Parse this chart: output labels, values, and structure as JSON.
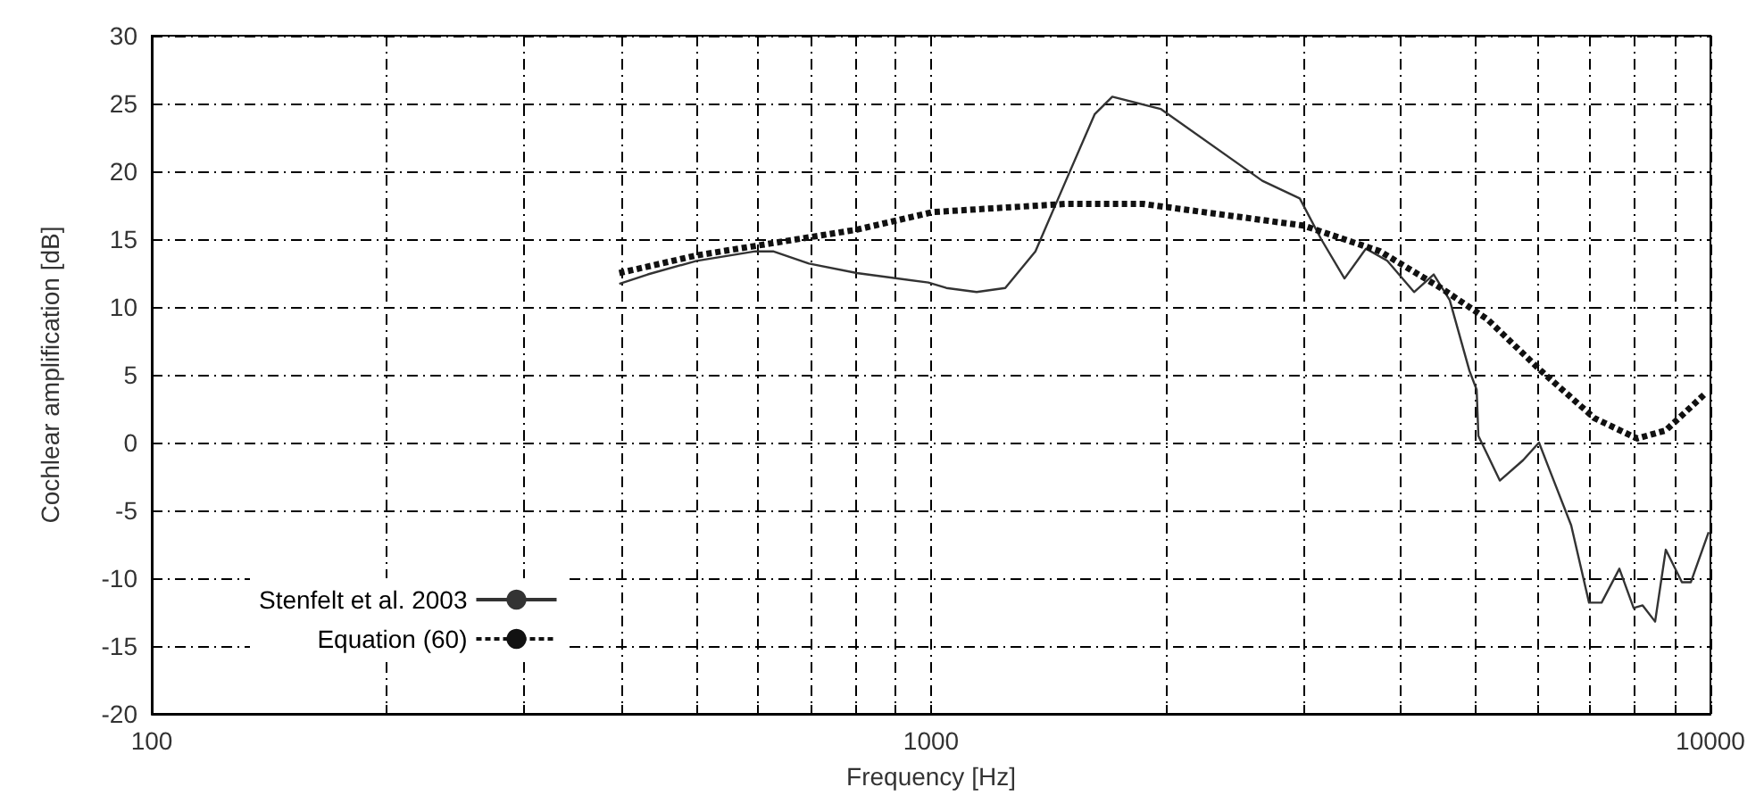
{
  "chart_data": {
    "type": "line",
    "xlabel": "Frequency [Hz]",
    "ylabel": "Cochlear amplification [dB]",
    "log": "x",
    "grid": true,
    "legend": "bottom left",
    "marker": "none",
    "xlim": [
      100,
      10000
    ],
    "ylim": [
      -20,
      30
    ],
    "xticks": [
      100,
      {
        "value": 200,
        "label": null
      },
      {
        "value": 300,
        "label": null
      },
      {
        "value": 400,
        "label": null
      },
      {
        "value": 500,
        "label": null
      },
      {
        "value": 600,
        "label": null
      },
      {
        "value": 700,
        "label": null
      },
      {
        "value": 800,
        "label": null
      },
      {
        "value": 900,
        "label": null
      },
      1000,
      {
        "value": 2000,
        "label": null
      },
      {
        "value": 3000,
        "label": null
      },
      {
        "value": 4000,
        "label": null
      },
      {
        "value": 5000,
        "label": null
      },
      {
        "value": 6000,
        "label": null
      },
      {
        "value": 7000,
        "label": null
      },
      {
        "value": 8000,
        "label": null
      },
      {
        "value": 9000,
        "label": null
      },
      10000
    ],
    "yticks": [
      -20,
      -15,
      -10,
      -5,
      0,
      5,
      10,
      15,
      20,
      25,
      30
    ],
    "series": [
      {
        "name": "Stenfelt et al. 2003",
        "color": "#333333",
        "line_style": "solid",
        "x": [
          398,
          433,
          500,
          595,
          627,
          697,
          803,
          992,
          1046,
          1144,
          1245,
          1361,
          1489,
          1621,
          1708,
          1970,
          2661,
          2972,
          3166,
          3392,
          3614,
          3849,
          4166,
          4415,
          4629,
          4906,
          5012,
          5038,
          5367,
          5749,
          6026,
          6187,
          6627,
          6986,
          7250,
          7641,
          7970,
          8185,
          8492,
          8764,
          9192,
          9436,
          9947
        ],
        "values": [
          11.7,
          12.4,
          13.4,
          14.1,
          14.1,
          13.2,
          12.5,
          11.8,
          11.4,
          11.1,
          11.4,
          14.1,
          19.3,
          24.2,
          25.5,
          24.6,
          19.3,
          18,
          15,
          12.1,
          14.3,
          13.4,
          11.1,
          12.4,
          10.5,
          5.3,
          3.9,
          0.5,
          -2.8,
          -1.3,
          0,
          -1.7,
          -6.1,
          -11.8,
          -11.8,
          -9.3,
          -12.2,
          -12,
          -13.2,
          -7.9,
          -10.3,
          -10.3,
          -6.6
        ]
      },
      {
        "name": "Equation (60)",
        "color": "#111111",
        "line_style": "dotted",
        "x": [
          398,
          500,
          595,
          803,
          1006,
          1489,
          1869,
          3004,
          3768,
          4509,
          5172,
          6059,
          7098,
          8054,
          8764,
          9843
        ],
        "values": [
          12.5,
          13.8,
          14.5,
          15.7,
          17,
          17.6,
          17.6,
          16,
          14.1,
          11.4,
          9.1,
          5.3,
          1.8,
          0.3,
          0.9,
          3.6
        ]
      }
    ]
  }
}
